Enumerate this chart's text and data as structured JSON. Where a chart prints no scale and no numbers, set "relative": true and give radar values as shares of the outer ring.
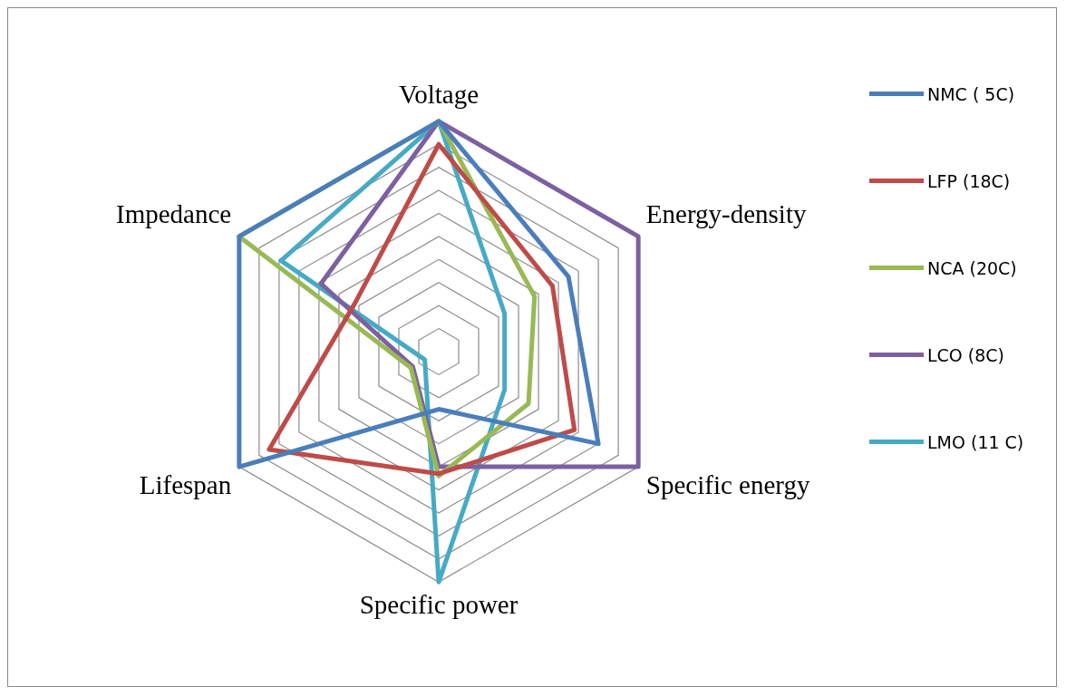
{
  "chart_data": {
    "type": "radar",
    "relative": true,
    "grid": true,
    "legend": "right",
    "marker": "none",
    "categories": [
      "Voltage",
      "Energy-density",
      "Specific energy",
      "Specific power",
      "Lifespan",
      "Impedance"
    ],
    "series": [
      {
        "name": "NMC ( 5C)",
        "color": "#4a7ebb",
        "values": [
          1,
          0.65,
          0.8,
          0.25,
          1,
          1
        ]
      },
      {
        "name": "LFP (18C)",
        "color": "#be4b48",
        "values": [
          0.9,
          0.57,
          0.68,
          0.53,
          0.85,
          0.42
        ]
      },
      {
        "name": "NCA (20C)",
        "color": "#98b954",
        "values": [
          1,
          0.48,
          0.45,
          0.54,
          0.14,
          1
        ]
      },
      {
        "name": "LCO (8C)",
        "color": "#7d60a0",
        "values": [
          1,
          1,
          1,
          0.5,
          0.13,
          0.59
        ]
      },
      {
        "name": "LMO (11 C)",
        "color": "#46aac5",
        "values": [
          1,
          0.33,
          0.33,
          1,
          0.07,
          0.79
        ]
      }
    ]
  }
}
